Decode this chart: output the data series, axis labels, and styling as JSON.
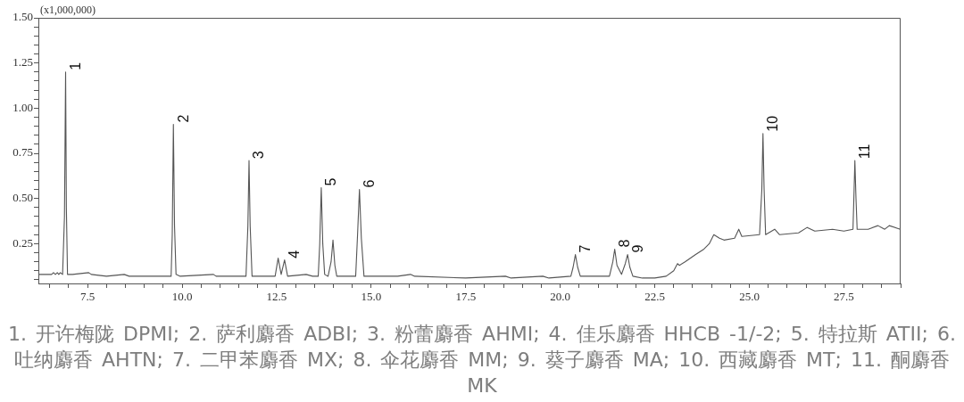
{
  "chart_data": {
    "type": "line",
    "ylabel": "(x1,000,000)",
    "x": [
      6.2,
      6.4,
      6.55,
      6.6,
      6.65,
      6.7,
      6.74,
      6.78,
      6.84,
      6.89,
      6.92,
      6.94,
      6.97,
      7.1,
      7.53,
      7.6,
      8.0,
      8.47,
      8.6,
      9.2,
      9.71,
      9.74,
      9.77,
      9.8,
      9.84,
      9.95,
      10.83,
      10.9,
      11.69,
      11.74,
      11.77,
      11.8,
      11.85,
      12.3,
      12.46,
      12.54,
      12.62,
      12.71,
      12.79,
      13.28,
      13.45,
      13.6,
      13.64,
      13.68,
      13.72,
      13.77,
      13.86,
      13.94,
      13.99,
      14.04,
      14.09,
      14.55,
      14.59,
      14.64,
      14.69,
      14.74,
      14.81,
      15.7,
      16.04,
      16.15,
      17.5,
      18.55,
      18.7,
      19.54,
      19.7,
      20.28,
      20.34,
      20.4,
      20.46,
      20.53,
      21.3,
      21.39,
      21.44,
      21.5,
      21.62,
      21.72,
      21.78,
      21.84,
      21.92,
      22.17,
      22.5,
      22.8,
      23.0,
      23.1,
      23.15,
      23.3,
      23.58,
      23.8,
      23.94,
      24.06,
      24.21,
      24.33,
      24.61,
      24.72,
      24.8,
      25.27,
      25.33,
      25.36,
      25.39,
      25.43,
      25.67,
      25.8,
      26.3,
      26.53,
      26.73,
      27.2,
      27.5,
      27.74,
      27.77,
      27.79,
      27.82,
      27.85,
      28.14,
      28.4,
      28.58,
      28.7,
      28.99
    ],
    "values": [
      0.08,
      0.08,
      0.08,
      0.09,
      0.08,
      0.09,
      0.08,
      0.09,
      0.08,
      0.4,
      1.2,
      0.45,
      0.08,
      0.08,
      0.09,
      0.08,
      0.07,
      0.08,
      0.07,
      0.07,
      0.07,
      0.3,
      0.91,
      0.35,
      0.08,
      0.07,
      0.08,
      0.07,
      0.07,
      0.35,
      0.71,
      0.35,
      0.07,
      0.07,
      0.07,
      0.17,
      0.08,
      0.16,
      0.07,
      0.08,
      0.07,
      0.07,
      0.25,
      0.56,
      0.25,
      0.08,
      0.07,
      0.15,
      0.27,
      0.13,
      0.07,
      0.07,
      0.07,
      0.3,
      0.55,
      0.28,
      0.07,
      0.07,
      0.08,
      0.07,
      0.06,
      0.07,
      0.06,
      0.07,
      0.06,
      0.07,
      0.12,
      0.19,
      0.12,
      0.07,
      0.07,
      0.15,
      0.22,
      0.13,
      0.08,
      0.14,
      0.19,
      0.12,
      0.07,
      0.06,
      0.06,
      0.07,
      0.1,
      0.14,
      0.13,
      0.15,
      0.19,
      0.22,
      0.25,
      0.3,
      0.28,
      0.27,
      0.28,
      0.33,
      0.29,
      0.3,
      0.55,
      0.86,
      0.55,
      0.3,
      0.33,
      0.3,
      0.31,
      0.34,
      0.32,
      0.33,
      0.32,
      0.33,
      0.55,
      0.71,
      0.5,
      0.33,
      0.33,
      0.35,
      0.33,
      0.35,
      0.33
    ],
    "color": "#555555",
    "marker": "none",
    "xlim": [
      6.2,
      29.0
    ],
    "xticks": [
      {
        "value": 6.5,
        "label": null
      },
      {
        "value": 7.0,
        "label": null
      },
      7.5,
      {
        "value": 8.0,
        "label": null
      },
      {
        "value": 8.5,
        "label": null
      },
      {
        "value": 9.0,
        "label": null
      },
      {
        "value": 9.5,
        "label": null
      },
      {
        "value": 10,
        "label": "10.0"
      },
      {
        "value": 10.5,
        "label": null
      },
      {
        "value": 11.0,
        "label": null
      },
      {
        "value": 11.5,
        "label": null
      },
      {
        "value": 12.0,
        "label": null
      },
      12.5,
      {
        "value": 13.0,
        "label": null
      },
      {
        "value": 13.5,
        "label": null
      },
      {
        "value": 14.0,
        "label": null
      },
      {
        "value": 14.5,
        "label": null
      },
      {
        "value": 15,
        "label": "15.0"
      },
      {
        "value": 15.5,
        "label": null
      },
      {
        "value": 16.0,
        "label": null
      },
      {
        "value": 16.5,
        "label": null
      },
      {
        "value": 17.0,
        "label": null
      },
      17.5,
      {
        "value": 18.0,
        "label": null
      },
      {
        "value": 18.5,
        "label": null
      },
      {
        "value": 19.0,
        "label": null
      },
      {
        "value": 19.5,
        "label": null
      },
      {
        "value": 20,
        "label": "20.0"
      },
      {
        "value": 20.5,
        "label": null
      },
      {
        "value": 21.0,
        "label": null
      },
      {
        "value": 21.5,
        "label": null
      },
      {
        "value": 22.0,
        "label": null
      },
      22.5,
      {
        "value": 23.0,
        "label": null
      },
      {
        "value": 23.5,
        "label": null
      },
      {
        "value": 24.0,
        "label": null
      },
      {
        "value": 24.5,
        "label": null
      },
      {
        "value": 25,
        "label": "25.0"
      },
      {
        "value": 25.5,
        "label": null
      },
      {
        "value": 26.0,
        "label": null
      },
      {
        "value": 26.5,
        "label": null
      },
      {
        "value": 27.0,
        "label": null
      },
      27.5,
      {
        "value": 28.0,
        "label": null
      },
      {
        "value": 28.5,
        "label": null
      },
      {
        "value": 29.0,
        "label": null
      }
    ],
    "ylim": [
      0.03,
      1.5
    ],
    "yticks": [
      {
        "value": 0.05,
        "label": null
      },
      {
        "value": 0.1,
        "label": null
      },
      {
        "value": 0.15,
        "label": null
      },
      {
        "value": 0.2,
        "label": null
      },
      0.25,
      {
        "value": 0.3,
        "label": null
      },
      {
        "value": 0.35,
        "label": null
      },
      {
        "value": 0.4,
        "label": null
      },
      {
        "value": 0.45,
        "label": null
      },
      {
        "value": 0.5,
        "label": "0.50"
      },
      {
        "value": 0.55,
        "label": null
      },
      {
        "value": 0.6,
        "label": null
      },
      {
        "value": 0.65,
        "label": null
      },
      {
        "value": 0.7,
        "label": null
      },
      0.75,
      {
        "value": 0.8,
        "label": null
      },
      {
        "value": 0.85,
        "label": null
      },
      {
        "value": 0.9,
        "label": null
      },
      {
        "value": 0.95,
        "label": null
      },
      {
        "value": 1,
        "label": "1.00"
      },
      {
        "value": 1.05,
        "label": null
      },
      {
        "value": 1.1,
        "label": null
      },
      {
        "value": 1.15,
        "label": null
      },
      {
        "value": 1.2,
        "label": null
      },
      1.25,
      {
        "value": 1.3,
        "label": null
      },
      {
        "value": 1.35,
        "label": null
      },
      {
        "value": 1.4,
        "label": null
      },
      {
        "value": 1.45,
        "label": null
      },
      {
        "value": 1.5,
        "label": "1.50"
      }
    ],
    "annotations": [
      {
        "text": "1",
        "x": 6.92,
        "y": 1.2
      },
      {
        "text": "2",
        "x": 9.77,
        "y": 0.91
      },
      {
        "text": "3",
        "x": 11.77,
        "y": 0.71
      },
      {
        "text": "4",
        "x": 12.71,
        "y": 0.16
      },
      {
        "text": "5",
        "x": 13.68,
        "y": 0.56
      },
      {
        "text": "6",
        "x": 14.69,
        "y": 0.55
      },
      {
        "text": "7",
        "x": 20.4,
        "y": 0.19
      },
      {
        "text": "8",
        "x": 21.44,
        "y": 0.22
      },
      {
        "text": "9",
        "x": 21.78,
        "y": 0.19
      },
      {
        "text": "10",
        "x": 25.36,
        "y": 0.86
      },
      {
        "text": "11",
        "x": 27.79,
        "y": 0.71
      },
      "1. 开许梅陇 DPMI; 2. 萨利麝香 ADBI; 3. 粉蕾麝香 AHMI; 4. 佳乐麝香 HHCB -1/-2; 5. 特拉斯 ATII; 6. 吐纳麝香 AHTN; 7. 二甲苯麝香 MX; 8. 伞花麝香 MM; 9. 葵子麝香 MA; 10. 西藏麝香 MT; 11. 酮麝香 MK"
    ]
  }
}
